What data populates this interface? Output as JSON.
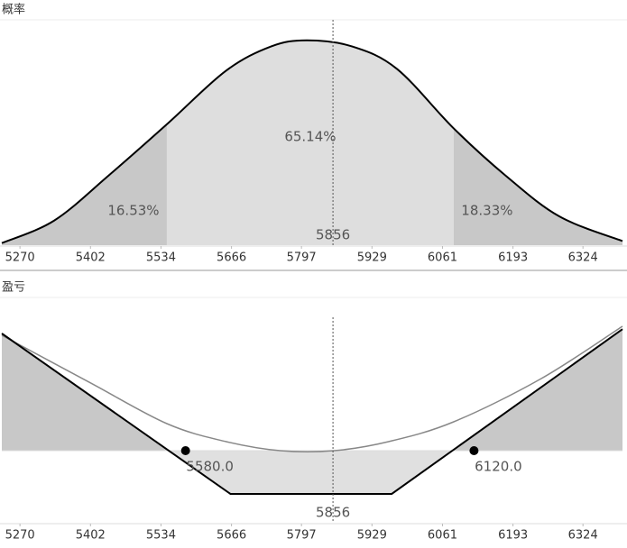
{
  "chart_data": [
    {
      "type": "distribution",
      "title": "概率",
      "xlim": [
        5236,
        6398
      ],
      "xticks": [
        5270,
        5402,
        5534,
        5666,
        5797,
        5929,
        6061,
        6193,
        6324
      ],
      "ylim": [
        0,
        110
      ],
      "series": [
        {
          "color": "#000000",
          "x": [
            5236,
            5334,
            5436,
            5545,
            5655,
            5740,
            5807,
            5892,
            5976,
            6082,
            6179,
            6280,
            6398
          ],
          "values": [
            1,
            12,
            34,
            59,
            85,
            97,
            100,
            97,
            86,
            57,
            34,
            14,
            2
          ]
        }
      ],
      "regions": {
        "boundaries": [
          5545,
          6082
        ],
        "values": [
          16.53,
          65.14,
          18.33
        ],
        "value_labels": [
          "16.53%",
          "65.14%",
          "18.33%"
        ],
        "colors": [
          "#c8c8c8",
          "#dedede",
          "#c8c8c8"
        ]
      },
      "marker": 5856
    },
    {
      "type": "payoff",
      "title": "盈亏",
      "xlim": [
        5236,
        6398
      ],
      "xticks": [
        5270,
        5402,
        5534,
        5666,
        5797,
        5929,
        6061,
        6193,
        6324
      ],
      "ylim": [
        -200,
        425
      ],
      "series": [
        {
          "color": "#000000",
          "x": [
            5236,
            5664,
            5966,
            6398
          ],
          "values": [
            325,
            -120,
            -120,
            337
          ]
        },
        {
          "color": "#888888",
          "x": [
            5236,
            5402,
            5545,
            5656,
            5757,
            5858,
            5960,
            6082,
            6246,
            6398
          ],
          "values": [
            320,
            188,
            75,
            25,
            0,
            0,
            25,
            80,
            200,
            345
          ]
        }
      ],
      "fill_colors": [
        "#c8c8c8",
        "#e0e0e0"
      ],
      "breakevens": [
        5580,
        6120
      ],
      "breakeven_labels": [
        "5580.0",
        "6120.0"
      ],
      "marker": 5856
    }
  ]
}
